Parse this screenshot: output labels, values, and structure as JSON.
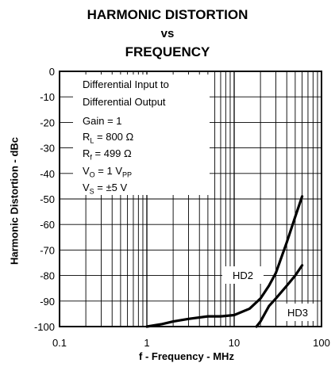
{
  "title": {
    "line1": "HARMONIC DISTORTION",
    "line2": "vs",
    "line3": "FREQUENCY"
  },
  "conditions": {
    "line1": "Differential Input to",
    "line2": "Differential Output",
    "gain": "Gain = 1",
    "rl_main": "R",
    "rl_sub": "L",
    "rl_value": " = 800 Ω",
    "rf_main": "R",
    "rf_sub": "f",
    "rf_value": " = 499 Ω",
    "vo_main": "V",
    "vo_sub": "O",
    "vo_value": " = 1 V",
    "vo_unit_sub": "PP",
    "vs_main": "V",
    "vs_sub": "S",
    "vs_value": " = ±5 V"
  },
  "chart_data": {
    "type": "line",
    "xlabel": "f - Frequency - MHz",
    "ylabel": "Harmonic Distortion - dBc",
    "xscale": "log",
    "xlim": [
      0.1,
      100
    ],
    "ylim": [
      -100,
      0
    ],
    "x_ticks": [
      "0.1",
      "1",
      "10",
      "100"
    ],
    "y_ticks": [
      "0",
      "-10",
      "-20",
      "-30",
      "-40",
      "-50",
      "-60",
      "-70",
      "-80",
      "-90",
      "-100"
    ],
    "grid": true,
    "series": [
      {
        "name": "HD2",
        "x": [
          1,
          1.5,
          2,
          3,
          5,
          7,
          10,
          15,
          20,
          25,
          30,
          40,
          50,
          60
        ],
        "y": [
          -100,
          -99,
          -98,
          -97,
          -96,
          -96,
          -95.5,
          -93,
          -89,
          -84,
          -79,
          -67,
          -57,
          -49
        ]
      },
      {
        "name": "HD3",
        "x": [
          18,
          20,
          25,
          30,
          40,
          50,
          60
        ],
        "y": [
          -100,
          -98,
          -92,
          -89,
          -84,
          -80,
          -76
        ]
      }
    ]
  }
}
